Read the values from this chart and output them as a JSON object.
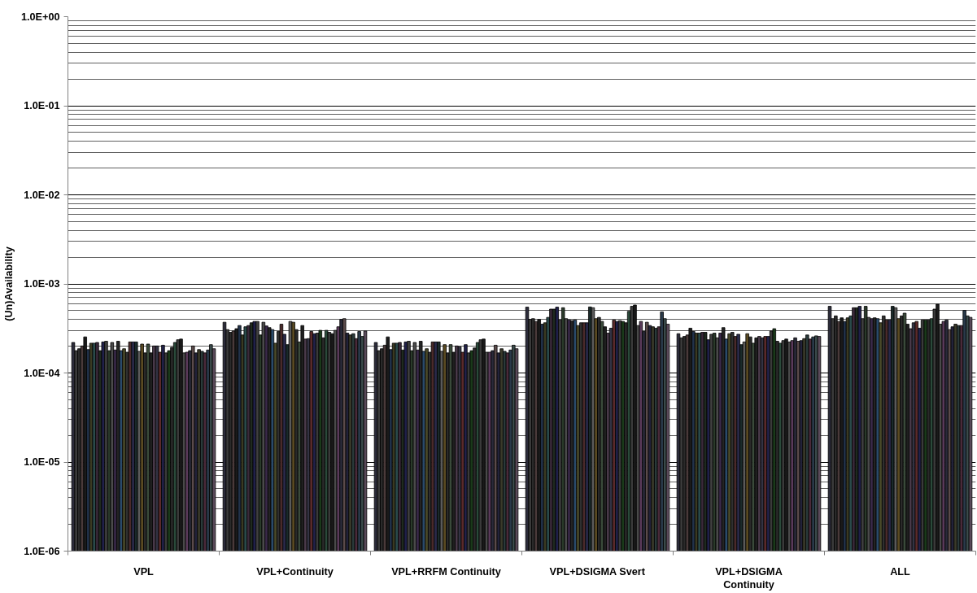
{
  "chart_data": {
    "type": "bar",
    "ylabel": "(Un)Availability",
    "log": true,
    "grid": "y",
    "categories": [
      "VPL",
      "VPL+Continuity",
      "VPL+RRFM Continuity",
      "VPL+DSIGMA Svert",
      "VPL+DSIGMA Continuity",
      "ALL"
    ],
    "ylim": [
      1e-06,
      1
    ],
    "yticks": [
      {
        "value": 1e-06,
        "label": "1.0E-06"
      },
      {
        "value": 1e-05,
        "label": "1.0E-05"
      },
      {
        "value": 0.0001,
        "label": "1.0E-04"
      },
      {
        "value": 0.001,
        "label": "1.0E-03"
      },
      {
        "value": 0.01,
        "label": "1.0E-02"
      },
      {
        "value": 0.1,
        "label": "1.0E-01"
      },
      {
        "value": 1,
        "label": "1.0E+00"
      }
    ],
    "series": [
      {
        "color": "#2b2b3a",
        "values": [
          0.00022,
          0.000371,
          0.00022,
          0.000548,
          0.000276,
          0.00056
        ]
      },
      {
        "color": "#3a3a3a",
        "values": [
          0.000178,
          0.000307,
          0.000178,
          0.000399,
          0.000248,
          0.000407
        ]
      },
      {
        "color": "#2a2a2a",
        "values": [
          0.000187,
          0.000286,
          0.000187,
          0.000407,
          0.000257,
          0.000437
        ]
      },
      {
        "color": "#4a3a3a",
        "values": [
          0.000201,
          0.000296,
          0.000205,
          0.000379,
          0.000267,
          0.000379
        ]
      },
      {
        "color": "#1a1a1a",
        "values": [
          0.000254,
          0.000314,
          0.000254,
          0.000399,
          0.000318,
          0.000416
        ]
      },
      {
        "color": "#22324a",
        "values": [
          0.000183,
          0.000341,
          0.000183,
          0.000353,
          0.000292,
          0.000379
        ]
      },
      {
        "color": "#3a3a22",
        "values": [
          0.000216,
          0.000267,
          0.000216,
          0.000366,
          0.00028,
          0.000416
        ]
      },
      {
        "color": "#2a4a4a",
        "values": [
          0.000216,
          0.00033,
          0.000216,
          0.000421,
          0.00028,
          0.000437
        ]
      },
      {
        "color": "#3a2a3a",
        "values": [
          0.00022,
          0.000341,
          0.00022,
          0.000521,
          0.000286,
          0.00054
        ]
      },
      {
        "color": "#1f2a1f",
        "values": [
          0.000178,
          0.000366,
          0.000181,
          0.000521,
          0.000286,
          0.00054
        ]
      },
      {
        "color": "#20204a",
        "values": [
          0.000223,
          0.000379,
          0.000223,
          0.000548,
          0.000236,
          0.00056
        ]
      },
      {
        "color": "#404040",
        "values": [
          0.000227,
          0.000379,
          0.000227,
          0.000393,
          0.000272,
          0.000407
        ]
      },
      {
        "color": "#2a3a2a",
        "values": [
          0.000178,
          0.000267,
          0.000178,
          0.00054,
          0.00028,
          0.00056
        ]
      },
      {
        "color": "#4a4a4a",
        "values": [
          0.00022,
          0.000371,
          0.00022,
          0.000407,
          0.000248,
          0.000421
        ]
      },
      {
        "color": "#3a2a4a",
        "values": [
          0.000181,
          0.000337,
          0.000181,
          0.000393,
          0.00028,
          0.000407
        ]
      },
      {
        "color": "#242424",
        "values": [
          0.000227,
          0.000323,
          0.000227,
          0.000387,
          0.000323,
          0.000416
        ]
      },
      {
        "color": "#2a4a6a",
        "values": [
          0.000178,
          0.000307,
          0.000175,
          0.000393,
          0.00024,
          0.000407
        ]
      },
      {
        "color": "#4a4a2a",
        "values": [
          0.000187,
          0.000216,
          0.000187,
          0.000341,
          0.000276,
          0.000366
        ]
      },
      {
        "color": "#303030",
        "values": [
          0.000171,
          0.000292,
          0.000171,
          0.000366,
          0.000286,
          0.000437
        ]
      },
      {
        "color": "#4a2a2a",
        "values": [
          0.000223,
          0.000353,
          0.000223,
          0.000366,
          0.000257,
          0.000393
        ]
      },
      {
        "color": "#2a2a4a",
        "values": [
          0.000223,
          0.000272,
          0.000223,
          0.000366,
          0.000272,
          0.000393
        ]
      },
      {
        "color": "#1a2a2a",
        "values": [
          0.000223,
          0.000208,
          0.000223,
          0.000551,
          0.000208,
          0.00056
        ]
      },
      {
        "color": "#5a5a5a",
        "values": [
          0.000175,
          0.000379,
          0.000175,
          0.00054,
          0.000223,
          0.00054
        ]
      },
      {
        "color": "#5a4a22",
        "values": [
          0.000211,
          0.000371,
          0.000208,
          0.000407,
          0.000276,
          0.000407
        ]
      },
      {
        "color": "#2a2a2a",
        "values": [
          0.000168,
          0.000307,
          0.000168,
          0.000421,
          0.000254,
          0.000437
        ]
      },
      {
        "color": "#3a4a3a",
        "values": [
          0.000211,
          0.000223,
          0.000208,
          0.000379,
          0.000216,
          0.000469
        ]
      },
      {
        "color": "#1f1f1f",
        "values": [
          0.000168,
          0.000341,
          0.000171,
          0.00033,
          0.000248,
          0.000353
        ]
      },
      {
        "color": "#4a3a4a",
        "values": [
          0.000201,
          0.00024,
          0.000201,
          0.00028,
          0.000257,
          0.000314
        ]
      },
      {
        "color": "#333344",
        "values": [
          0.000201,
          0.000243,
          0.000197,
          0.000318,
          0.000248,
          0.000366
        ]
      },
      {
        "color": "#5a2a2a",
        "values": [
          0.000171,
          0.000292,
          0.000171,
          0.000393,
          0.000257,
          0.000379
        ]
      },
      {
        "color": "#22224a",
        "values": [
          0.000205,
          0.000276,
          0.000208,
          0.000379,
          0.000257,
          0.000318
        ]
      },
      {
        "color": "#3a3a3a",
        "values": [
          0.000168,
          0.00028,
          0.000168,
          0.000387,
          0.000296,
          0.000393
        ]
      },
      {
        "color": "#1a3a1a",
        "values": [
          0.000178,
          0.000301,
          0.000178,
          0.000379,
          0.000314,
          0.000393
        ]
      },
      {
        "color": "#2a2a2a",
        "values": [
          0.000194,
          0.000248,
          0.000191,
          0.000366,
          0.000227,
          0.000393
        ]
      },
      {
        "color": "#2a4a3a",
        "values": [
          0.00022,
          0.000301,
          0.00022,
          0.000492,
          0.000216,
          0.000407
        ]
      },
      {
        "color": "#3a3a3a",
        "values": [
          0.000236,
          0.000286,
          0.000236,
          0.00056,
          0.000231,
          0.000521
        ]
      },
      {
        "color": "#1a1a1a",
        "values": [
          0.00024,
          0.000276,
          0.00024,
          0.000579,
          0.00024,
          0.000592
        ]
      },
      {
        "color": "#4a4a4a",
        "values": [
          0.000168,
          0.000301,
          0.000171,
          0.000341,
          0.000223,
          0.000353
        ]
      },
      {
        "color": "#5a3a5a",
        "values": [
          0.000171,
          0.00033,
          0.000171,
          0.000379,
          0.000231,
          0.000379
        ]
      },
      {
        "color": "#2a2a3a",
        "values": [
          0.000178,
          0.000399,
          0.000178,
          0.000292,
          0.000248,
          0.000393
        ]
      },
      {
        "color": "#5a4a4a",
        "values": [
          0.000201,
          0.000407,
          0.000205,
          0.000371,
          0.000227,
          0.000307
        ]
      },
      {
        "color": "#22223a",
        "values": [
          0.000168,
          0.00028,
          0.000168,
          0.000341,
          0.000231,
          0.00033
        ]
      },
      {
        "color": "#3a3a2a",
        "values": [
          0.000183,
          0.000267,
          0.000187,
          0.00033,
          0.000243,
          0.000353
        ]
      },
      {
        "color": "#2a3a3a",
        "values": [
          0.000175,
          0.000276,
          0.000175,
          0.000318,
          0.000267,
          0.000341
        ]
      },
      {
        "color": "#4a2a3a",
        "values": [
          0.000168,
          0.000243,
          0.000168,
          0.00033,
          0.00024,
          0.000341
        ]
      },
      {
        "color": "#2a3a4a",
        "values": [
          0.000181,
          0.000292,
          0.000181,
          0.000485,
          0.000254,
          0.000504
        ]
      },
      {
        "color": "#3a4a4a",
        "values": [
          0.000208,
          0.000257,
          0.000205,
          0.000407,
          0.000261,
          0.000437
        ]
      },
      {
        "color": "#5a4a5a",
        "values": [
          0.000187,
          0.000296,
          0.000187,
          0.000353,
          0.000257,
          0.000421
        ]
      }
    ]
  }
}
